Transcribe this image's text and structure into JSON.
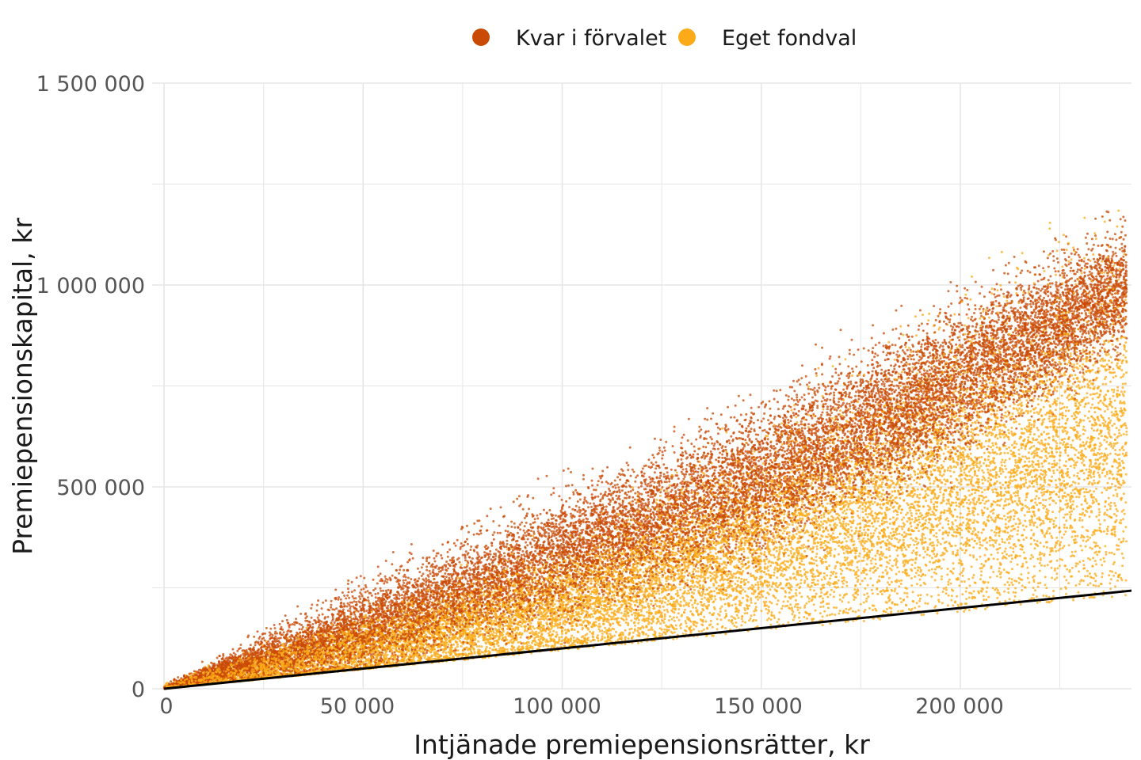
{
  "chart_data": {
    "type": "scatter",
    "xlabel": "Intjänade premiepensionsrätter, kr",
    "ylabel": "Premiepensionskapital, kr",
    "xlim": [
      -3000,
      243000
    ],
    "ylim": [
      0,
      1500000
    ],
    "x_ticks": [
      0,
      50000,
      100000,
      150000,
      200000
    ],
    "x_tick_labels": [
      "0",
      "50 000",
      "100 000",
      "150 000",
      "200 000"
    ],
    "y_ticks": [
      0,
      500000,
      1000000,
      1500000
    ],
    "y_tick_labels": [
      "0",
      "500 000",
      "1 000 000",
      "1 500 000"
    ],
    "grid": true,
    "legend_position": "top-center",
    "reference_line": {
      "description": "",
      "x": [
        0,
        243000
      ],
      "y": [
        0,
        243000
      ]
    },
    "series": [
      {
        "name": "Kvar i förvalet",
        "color": "#c94a05",
        "point_count": 16000,
        "trend": {
          "x": [
            0,
            50000,
            100000,
            150000,
            200000,
            243000
          ],
          "y_center": [
            0,
            150000,
            330000,
            520000,
            770000,
            1000000
          ],
          "y_spread": [
            0,
            50000,
            75000,
            90000,
            90000,
            70000
          ]
        }
      },
      {
        "name": "Eget fondval",
        "color": "#fbab18",
        "point_count": 16000,
        "trend": {
          "x": [
            0,
            50000,
            100000,
            150000,
            200000,
            243000
          ],
          "y_center": [
            0,
            100000,
            200000,
            360000,
            520000,
            640000
          ],
          "y_spread": [
            0,
            40000,
            70000,
            120000,
            180000,
            220000
          ]
        }
      }
    ]
  }
}
